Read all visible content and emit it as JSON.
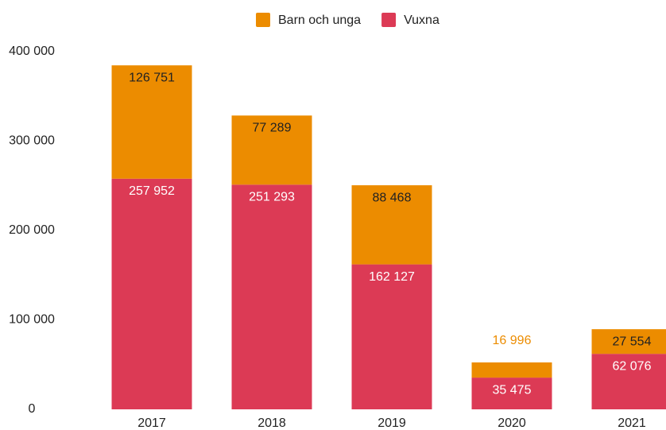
{
  "chart_data": {
    "type": "stacked_bar",
    "categories": [
      "2017",
      "2018",
      "2019",
      "2020",
      "2021"
    ],
    "series": [
      {
        "name": "Vuxna",
        "color": "#dc3a55",
        "values": [
          257952,
          251293,
          162127,
          35475,
          62076
        ],
        "value_labels": [
          "257 952",
          "251 293",
          "162 127",
          "35 475",
          "62 076"
        ]
      },
      {
        "name": "Barn och unga",
        "color": "#ec8c00",
        "values": [
          126751,
          77289,
          88468,
          16996,
          27554
        ],
        "value_labels": [
          "126 751",
          "77 289",
          "88 468",
          "16 996",
          "27 554"
        ]
      }
    ],
    "legend_order": [
      1,
      0
    ],
    "ylim": [
      0,
      400000
    ],
    "yticks": [
      0,
      {
        "value": 100000,
        "label": "100 000"
      },
      {
        "value": 200000,
        "label": "200 000"
      },
      {
        "value": 300000,
        "label": "300 000"
      },
      {
        "value": 400000,
        "label": "400 000"
      }
    ],
    "grid": false,
    "legend": "top"
  }
}
